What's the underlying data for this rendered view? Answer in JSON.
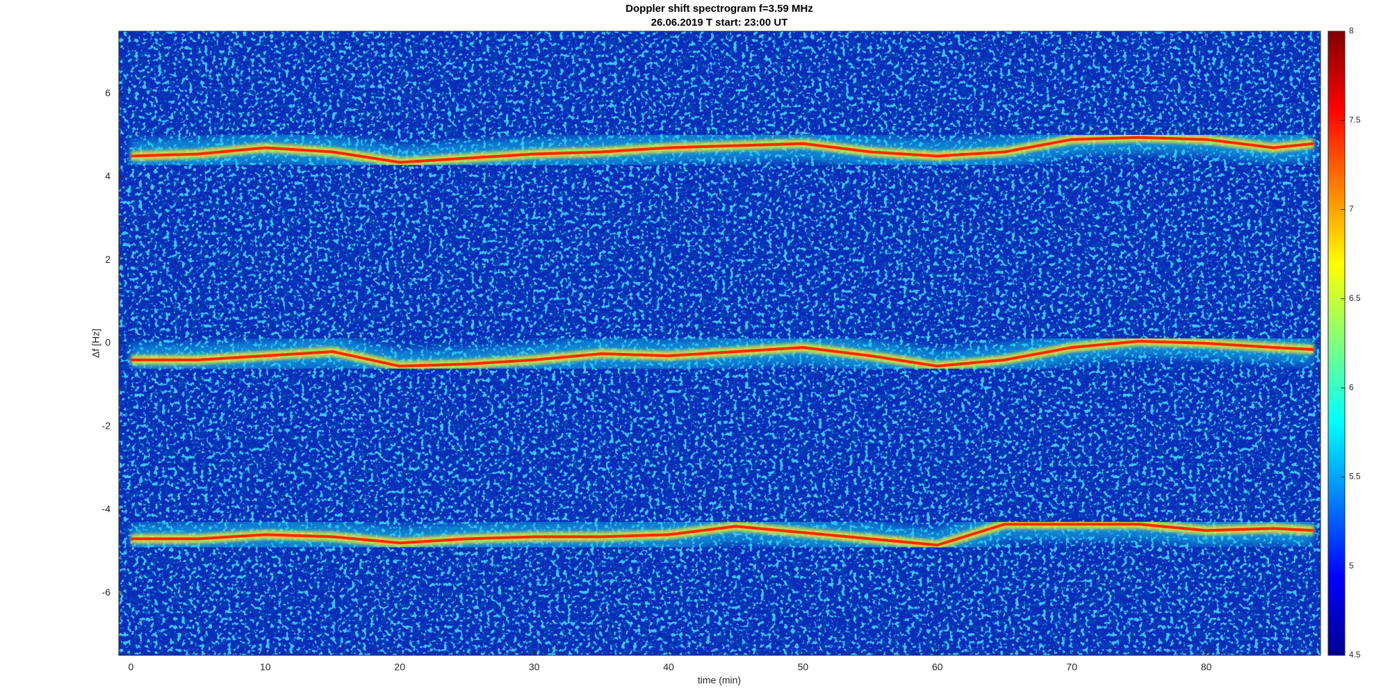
{
  "chart_data": {
    "type": "spectrogram",
    "title": "Doppler shift spectrogram f=3.59 MHz",
    "subtitle": "26.06.2019   T start: 23:00 UT",
    "xlabel": "time (min)",
    "ylabel": "Δf [Hz]",
    "xlim": [
      -0.9,
      88.5
    ],
    "ylim": [
      -7.5,
      7.5
    ],
    "xticks": [
      0,
      10,
      20,
      30,
      40,
      50,
      60,
      70,
      80
    ],
    "yticks": [
      -6,
      -4,
      -2,
      0,
      2,
      4,
      6
    ],
    "clim": [
      4.5,
      8
    ],
    "cticks": [
      4.5,
      5,
      5.5,
      6,
      6.5,
      7,
      7.5,
      8
    ],
    "colormap": "jet",
    "x": [
      0,
      5,
      10,
      15,
      20,
      25,
      30,
      35,
      40,
      45,
      50,
      55,
      60,
      65,
      70,
      75,
      80,
      85,
      88
    ],
    "series": [
      {
        "color": "#ff2a00",
        "values": [
          4.5,
          4.55,
          4.7,
          4.6,
          4.35,
          4.45,
          4.55,
          4.6,
          4.7,
          4.75,
          4.8,
          4.6,
          4.5,
          4.6,
          4.9,
          4.95,
          4.9,
          4.7,
          4.8
        ]
      },
      {
        "color": "#ff2a00",
        "values": [
          -0.4,
          -0.4,
          -0.3,
          -0.2,
          -0.55,
          -0.5,
          -0.4,
          -0.25,
          -0.3,
          -0.2,
          -0.1,
          -0.3,
          -0.55,
          -0.4,
          -0.1,
          0.05,
          0,
          -0.1,
          -0.15
        ]
      },
      {
        "color": "#ff2a00",
        "values": [
          -4.7,
          -4.7,
          -4.6,
          -4.65,
          -4.8,
          -4.7,
          -4.65,
          -4.65,
          -4.6,
          -4.4,
          -4.55,
          -4.7,
          -4.85,
          -4.35,
          -4.35,
          -4.35,
          -4.5,
          -4.45,
          -4.5
        ]
      }
    ]
  }
}
